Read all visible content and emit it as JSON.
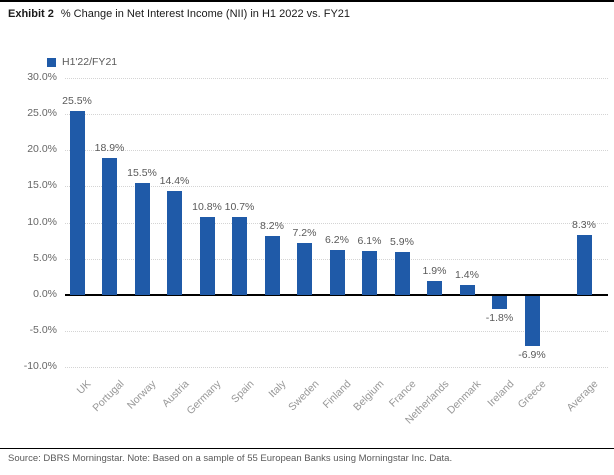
{
  "header": {
    "exhibit_label": "Exhibit 2",
    "title": "% Change in Net Interest Income (NII) in H1 2022 vs. FY21"
  },
  "footer": {
    "source": "Source: DBRS Morningstar. Note: Based on a sample of 55 European Banks using Morningstar Inc. Data."
  },
  "chart_data": {
    "type": "bar",
    "title": "% Change in Net Interest Income (NII) in H1 2022 vs. FY21",
    "series_name": "H1'22/FY21",
    "categories": [
      "UK",
      "Portugal",
      "Norway",
      "Austria",
      "Germany",
      "Spain",
      "Italy",
      "Sweden",
      "Finland",
      "Belgium",
      "France",
      "Netherlands",
      "Denmark",
      "Ireland",
      "Greece",
      "Average"
    ],
    "values": [
      25.5,
      18.9,
      15.5,
      14.4,
      10.8,
      10.7,
      8.2,
      7.2,
      6.2,
      6.1,
      5.9,
      1.9,
      1.4,
      -1.8,
      -6.9,
      8.3
    ],
    "data_labels": [
      "25.5%",
      "18.9%",
      "15.5%",
      "14.4%",
      "10.8%",
      "10.7%",
      "8.2%",
      "7.2%",
      "6.2%",
      "6.1%",
      "5.9%",
      "1.9%",
      "1.4%",
      "-1.8%",
      "-6.9%",
      "8.3%"
    ],
    "xlabel": "",
    "ylabel": "",
    "ylim": [
      -10,
      30
    ],
    "ytick_step": 5,
    "ytick_labels": [
      "30.0%",
      "25.0%",
      "20.0%",
      "15.0%",
      "10.0%",
      "5.0%",
      "0.0%",
      "-5.0%",
      "-10.0%"
    ],
    "grid": true,
    "legend_position": "top-left",
    "bar_color": "#1f5aa8",
    "average_bar_separated": true
  }
}
